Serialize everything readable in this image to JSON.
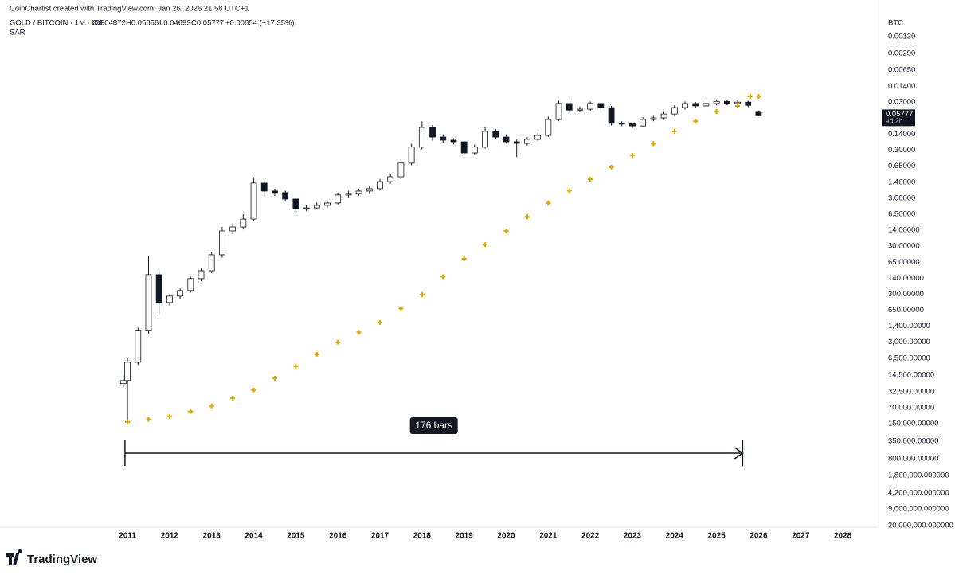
{
  "header": {
    "credit": "CoinChartist created with TradingView.com, Jan 26, 2026 21:58 UTC+1",
    "symbol": "GOLD / BITCOIN · 1M · ICE",
    "ohlc": [
      "O0.04872",
      "H0.05856",
      "L0.04693",
      "C0.05777"
    ],
    "change": "+0.00854 (+17.35%)",
    "indicator": "SAR"
  },
  "logo": "TradingView",
  "chart_data": {
    "type": "candlestick",
    "y_unit": "BTC",
    "log_scale": true,
    "inverted": true,
    "grid": false,
    "colors": {
      "up": "#131722",
      "down": "#ffffff",
      "border": "#131722"
    },
    "x": [
      2010.9,
      2011.0,
      2011.25,
      2011.5,
      2011.75,
      2012.0,
      2012.25,
      2012.5,
      2012.75,
      2013.0,
      2013.25,
      2013.5,
      2013.75,
      2014.0,
      2014.25,
      2014.5,
      2014.75,
      2015.0,
      2015.25,
      2015.5,
      2015.75,
      2016.0,
      2016.25,
      2016.5,
      2016.75,
      2017.0,
      2017.25,
      2017.5,
      2017.75,
      2018.0,
      2018.25,
      2018.5,
      2018.75,
      2019.0,
      2019.25,
      2019.5,
      2019.75,
      2020.0,
      2020.25,
      2020.5,
      2020.75,
      2021.0,
      2021.25,
      2021.5,
      2021.75,
      2022.0,
      2022.25,
      2022.5,
      2022.75,
      2023.0,
      2023.25,
      2023.5,
      2023.75,
      2024.0,
      2024.25,
      2024.5,
      2024.75,
      2025.0,
      2025.25,
      2025.5,
      2025.75,
      2026.0
    ],
    "open": [
      22000,
      19000,
      7900,
      1700,
      118,
      450,
      331,
      254,
      143,
      98,
      45.5,
      14.5,
      12,
      8.2,
      1.46,
      2.14,
      2.31,
      3.14,
      4.97,
      4.8,
      4.26,
      3.8,
      2.59,
      2.4,
      2.14,
      1.91,
      1.36,
      1.08,
      0.56,
      0.26,
      0.101,
      0.16,
      0.186,
      0.201,
      0.343,
      0.26,
      0.122,
      0.16,
      0.201,
      0.217,
      0.179,
      0.148,
      0.069,
      0.032,
      0.044,
      0.042,
      0.032,
      0.039,
      0.083,
      0.085,
      0.094,
      0.069,
      0.064,
      0.053,
      0.039,
      0.032,
      0.036,
      0.032,
      0.029,
      0.032,
      0.03,
      0.04872
    ],
    "high": [
      26000,
      139000,
      9000,
      2000,
      800,
      520,
      380,
      280,
      160,
      110,
      52,
      17,
      13.5,
      9.2,
      2.5,
      2.7,
      3.5,
      6.5,
      5.6,
      5.2,
      4.7,
      4.1,
      2.9,
      2.7,
      2.4,
      2.1,
      1.5,
      1.2,
      0.62,
      0.29,
      0.19,
      0.21,
      0.23,
      0.38,
      0.37,
      0.28,
      0.18,
      0.22,
      0.42,
      0.24,
      0.19,
      0.16,
      0.075,
      0.05,
      0.049,
      0.046,
      0.044,
      0.092,
      0.095,
      0.105,
      0.1,
      0.075,
      0.07,
      0.058,
      0.043,
      0.04,
      0.039,
      0.035,
      0.035,
      0.034,
      0.038,
      0.05856
    ],
    "low": [
      15000,
      6500,
      1500,
      49,
      100,
      300,
      230,
      130,
      88,
      40,
      12,
      10,
      6.5,
      1.1,
      1.3,
      1.9,
      2.1,
      2.9,
      4.2,
      3.7,
      3.4,
      2.3,
      2.1,
      1.9,
      1.7,
      1.2,
      0.95,
      0.48,
      0.22,
      0.075,
      0.09,
      0.14,
      0.17,
      0.19,
      0.23,
      0.1,
      0.11,
      0.14,
      0.18,
      0.16,
      0.13,
      0.06,
      0.028,
      0.029,
      0.037,
      0.029,
      0.03,
      0.036,
      0.075,
      0.08,
      0.062,
      0.058,
      0.048,
      0.035,
      0.029,
      0.03,
      0.029,
      0.026,
      0.027,
      0.027,
      0.028,
      0.04693
    ],
    "close": [
      19000,
      7900,
      1700,
      118,
      450,
      331,
      254,
      143,
      98,
      45.5,
      14.5,
      12,
      8.2,
      1.46,
      2.14,
      2.31,
      3.14,
      4.97,
      4.8,
      4.26,
      3.8,
      2.59,
      2.4,
      2.14,
      1.91,
      1.36,
      1.08,
      0.56,
      0.26,
      0.101,
      0.16,
      0.186,
      0.201,
      0.343,
      0.26,
      0.122,
      0.16,
      0.201,
      0.217,
      0.179,
      0.148,
      0.069,
      0.032,
      0.044,
      0.042,
      0.032,
      0.039,
      0.083,
      0.085,
      0.094,
      0.069,
      0.064,
      0.053,
      0.039,
      0.032,
      0.036,
      0.032,
      0.029,
      0.032,
      0.03,
      0.035,
      0.05777
    ],
    "countdown": "4d 2h",
    "sar": {
      "name": "SAR",
      "color": "#e0a800",
      "x": [
        2011.0,
        2011.5,
        2012.0,
        2012.5,
        2013.0,
        2013.5,
        2014.0,
        2014.5,
        2015.0,
        2015.5,
        2016.0,
        2016.5,
        2017.0,
        2017.5,
        2018.0,
        2018.5,
        2019.0,
        2019.5,
        2020.0,
        2020.5,
        2021.0,
        2021.5,
        2022.0,
        2022.5,
        2023.0,
        2023.5,
        2024.0,
        2024.5,
        2025.0,
        2025.5,
        2025.8,
        2026.0
      ],
      "values": [
        139000,
        122000,
        106000,
        84000,
        64400,
        44000,
        30000,
        17000,
        9540,
        5400,
        3030,
        1880,
        1170,
        600,
        307,
        130,
        55,
        28,
        14.5,
        7.4,
        3.8,
        2.1,
        1.21,
        0.68,
        0.384,
        0.22,
        0.122,
        0.075,
        0.047,
        0.036,
        0.0228,
        0.0228
      ]
    },
    "measure": {
      "label": "176 bars",
      "x": [
        2010.94,
        2025.62
      ]
    },
    "xlim": [
      2007.97,
      2028.85
    ],
    "xticks": [
      2011,
      2012,
      2013,
      2014,
      2015,
      2016,
      2017,
      2018,
      2019,
      2020,
      2021,
      2022,
      2023,
      2024,
      2025,
      2026,
      2027,
      2028
    ],
    "ylim": [
      0.00048,
      21600000
    ],
    "yticks": [
      {
        "value": 0.0013,
        "label": "0.00130"
      },
      {
        "value": 0.0029,
        "label": "0.00290"
      },
      {
        "value": 0.0065,
        "label": "0.00650"
      },
      {
        "value": 0.014,
        "label": "0.01400"
      },
      {
        "value": 0.03,
        "label": "0.03000"
      },
      {
        "value": 0.14,
        "label": "0.14000"
      },
      {
        "value": 0.3,
        "label": "0.30000"
      },
      {
        "value": 0.65,
        "label": "0.65000"
      },
      {
        "value": 1.4,
        "label": "1.40000"
      },
      {
        "value": 3,
        "label": "3.00000"
      },
      {
        "value": 6.5,
        "label": "6.50000"
      },
      {
        "value": 14,
        "label": "14.00000"
      },
      {
        "value": 30,
        "label": "30.00000"
      },
      {
        "value": 65,
        "label": "65.00000"
      },
      {
        "value": 140,
        "label": "140.00000"
      },
      {
        "value": 300,
        "label": "300.00000"
      },
      {
        "value": 650,
        "label": "650.00000"
      },
      {
        "value": 1400,
        "label": "1,400.00000"
      },
      {
        "value": 3000,
        "label": "3,000.00000"
      },
      {
        "value": 6500,
        "label": "6,500.00000"
      },
      {
        "value": 14500,
        "label": "14,500.00000"
      },
      {
        "value": 32500,
        "label": "32,500.00000"
      },
      {
        "value": 70000,
        "label": "70,000.00000"
      },
      {
        "value": 150000,
        "label": "150,000.00000"
      },
      {
        "value": 350000,
        "label": "350,000.00000"
      },
      {
        "value": 800000,
        "label": "800,000.00000"
      },
      {
        "value": 1800000,
        "label": "1,800,000.000000"
      },
      {
        "value": 4200000,
        "label": "4,200,000.000000"
      },
      {
        "value": 9000000,
        "label": "9,000,000.000000"
      },
      {
        "value": 20000000,
        "label": "20,000,000.000000"
      }
    ]
  }
}
